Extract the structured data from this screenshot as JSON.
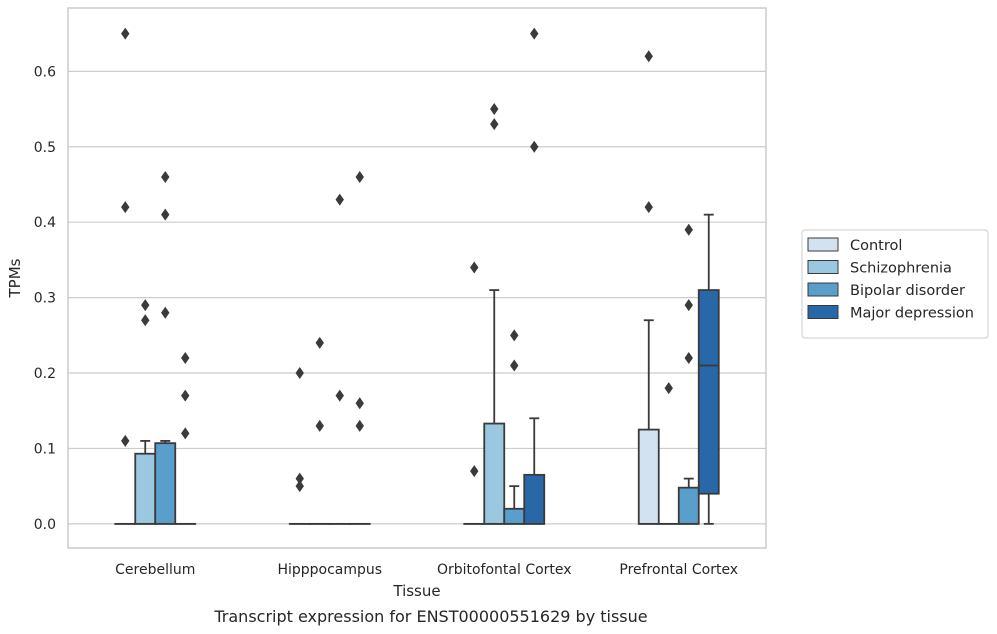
{
  "chart_data": {
    "type": "box",
    "caption": "Transcript expression for ENST00000551629 by tissue",
    "xlabel": "Tissue",
    "ylabel": "TPMs",
    "ylim": [
      -0.032,
      0.684
    ],
    "yticks": [
      0.0,
      0.1,
      0.2,
      0.3,
      0.4,
      0.5,
      0.6
    ],
    "ytick_labels": [
      "0.0",
      "0.1",
      "0.2",
      "0.3",
      "0.4",
      "0.5",
      "0.6"
    ],
    "grid": "horizontal",
    "legend_position": "right",
    "categories": [
      "Cerebellum",
      "Hipppocampus",
      "Orbitofontal Cortex",
      "Prefrontal Cortex"
    ],
    "series": [
      {
        "name": "Control",
        "color": "#d2e2f1",
        "boxes": [
          {
            "q1": 0.0,
            "median": 0.0,
            "q3": 0.0,
            "whisker_low": 0.0,
            "whisker_high": 0.0,
            "outliers": [
              0.11,
              0.42,
              0.65
            ]
          },
          {
            "q1": 0.0,
            "median": 0.0,
            "q3": 0.0,
            "whisker_low": 0.0,
            "whisker_high": 0.0,
            "outliers": [
              0.05,
              0.06,
              0.2
            ]
          },
          {
            "q1": 0.0,
            "median": 0.0,
            "q3": 0.0,
            "whisker_low": 0.0,
            "whisker_high": 0.0,
            "outliers": [
              0.07,
              0.34
            ]
          },
          {
            "q1": 0.0,
            "median": 0.0,
            "q3": 0.125,
            "whisker_low": 0.0,
            "whisker_high": 0.27,
            "outliers": [
              0.42,
              0.62
            ]
          }
        ]
      },
      {
        "name": "Schizophrenia",
        "color": "#9ac8e0",
        "boxes": [
          {
            "q1": 0.0,
            "median": 0.0,
            "q3": 0.093,
            "whisker_low": 0.0,
            "whisker_high": 0.11,
            "outliers": [
              0.27,
              0.29
            ]
          },
          {
            "q1": 0.0,
            "median": 0.0,
            "q3": 0.0,
            "whisker_low": 0.0,
            "whisker_high": 0.0,
            "outliers": [
              0.13,
              0.24
            ]
          },
          {
            "q1": 0.0,
            "median": 0.0,
            "q3": 0.133,
            "whisker_low": 0.0,
            "whisker_high": 0.31,
            "outliers": [
              0.53,
              0.55
            ]
          },
          {
            "q1": 0.0,
            "median": 0.0,
            "q3": 0.0,
            "whisker_low": 0.0,
            "whisker_high": 0.0,
            "outliers": [
              0.18
            ]
          }
        ]
      },
      {
        "name": "Bipolar disorder",
        "color": "#5a9ecc",
        "boxes": [
          {
            "q1": 0.0,
            "median": 0.0,
            "q3": 0.107,
            "whisker_low": 0.0,
            "whisker_high": 0.11,
            "outliers": [
              0.28,
              0.41,
              0.46
            ]
          },
          {
            "q1": 0.0,
            "median": 0.0,
            "q3": 0.0,
            "whisker_low": 0.0,
            "whisker_high": 0.0,
            "outliers": [
              0.17,
              0.43
            ]
          },
          {
            "q1": 0.0,
            "median": 0.0,
            "q3": 0.02,
            "whisker_low": 0.0,
            "whisker_high": 0.05,
            "outliers": [
              0.21,
              0.25
            ]
          },
          {
            "q1": 0.0,
            "median": 0.0,
            "q3": 0.048,
            "whisker_low": 0.0,
            "whisker_high": 0.06,
            "outliers": [
              0.22,
              0.29,
              0.39
            ]
          }
        ]
      },
      {
        "name": "Major depression",
        "color": "#2868a9",
        "boxes": [
          {
            "q1": 0.0,
            "median": 0.0,
            "q3": 0.0,
            "whisker_low": 0.0,
            "whisker_high": 0.0,
            "outliers": [
              0.12,
              0.17,
              0.22
            ]
          },
          {
            "q1": 0.0,
            "median": 0.0,
            "q3": 0.0,
            "whisker_low": 0.0,
            "whisker_high": 0.0,
            "outliers": [
              0.13,
              0.16,
              0.46
            ]
          },
          {
            "q1": 0.0,
            "median": 0.0,
            "q3": 0.065,
            "whisker_low": 0.0,
            "whisker_high": 0.14,
            "outliers": [
              0.5,
              0.65
            ]
          },
          {
            "q1": 0.04,
            "median": 0.21,
            "q3": 0.31,
            "whisker_low": 0.0,
            "whisker_high": 0.41,
            "outliers": []
          }
        ]
      }
    ]
  }
}
